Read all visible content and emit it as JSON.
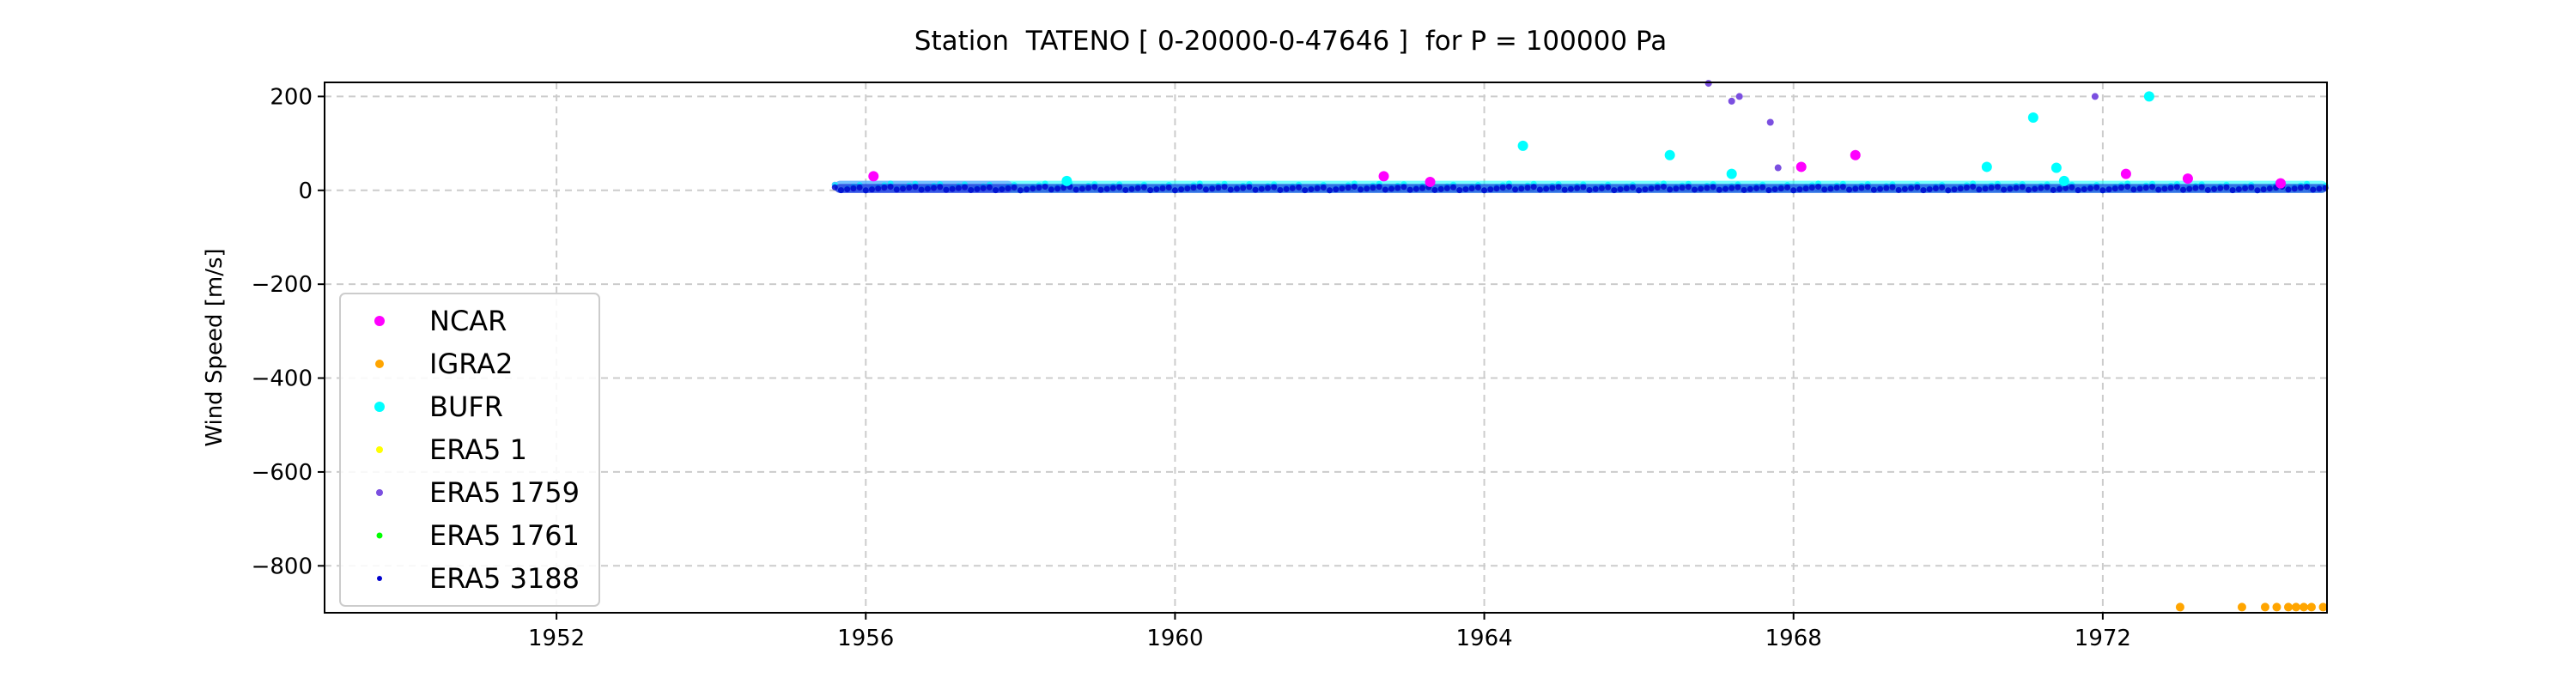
{
  "chart_data": {
    "type": "scatter",
    "title": "Station  TATENO [ 0-20000-0-47646 ]  for P = 100000 Pa",
    "xlabel": "",
    "ylabel": "Wind Speed [m/s]",
    "xlim": [
      1949.0,
      1974.9
    ],
    "ylim": [
      -900,
      230
    ],
    "xticks": [
      1952,
      1956,
      1960,
      1964,
      1968,
      1972
    ],
    "xtick_labels": [
      "1952",
      "1956",
      "1960",
      "1964",
      "1968",
      "1972"
    ],
    "yticks": [
      200,
      0,
      -200,
      -400,
      -600,
      -800
    ],
    "ytick_labels": [
      "200",
      "0",
      "−200",
      "−400",
      "−600",
      "−800"
    ],
    "grid": true,
    "legend_position": "lower-left",
    "series": [
      {
        "name": "NCAR",
        "color": "#ff00ff",
        "dense_band": {
          "x_start": 1955.6,
          "x_end": 1957.9,
          "y_min": 0,
          "y_max": 15
        },
        "points": [
          {
            "x": 1956.1,
            "y": 30
          },
          {
            "x": 1962.7,
            "y": 30
          },
          {
            "x": 1963.3,
            "y": 18
          },
          {
            "x": 1968.1,
            "y": 50
          },
          {
            "x": 1968.8,
            "y": 75
          },
          {
            "x": 1972.3,
            "y": 35
          },
          {
            "x": 1973.1,
            "y": 25
          },
          {
            "x": 1974.3,
            "y": 15
          }
        ]
      },
      {
        "name": "IGRA2",
        "color": "#ffa500",
        "points": [
          {
            "x": 1973.0,
            "y": -888
          },
          {
            "x": 1973.8,
            "y": -888
          },
          {
            "x": 1974.1,
            "y": -888
          },
          {
            "x": 1974.25,
            "y": -888
          },
          {
            "x": 1974.4,
            "y": -888
          },
          {
            "x": 1974.5,
            "y": -888
          },
          {
            "x": 1974.6,
            "y": -888
          },
          {
            "x": 1974.7,
            "y": -888
          },
          {
            "x": 1974.85,
            "y": -888
          }
        ]
      },
      {
        "name": "BUFR",
        "color": "#00ffff",
        "dense_band": {
          "x_start": 1955.6,
          "x_end": 1974.9,
          "y_min": 0,
          "y_max": 15
        },
        "points": [
          {
            "x": 1964.5,
            "y": 95
          },
          {
            "x": 1966.4,
            "y": 75
          },
          {
            "x": 1967.2,
            "y": 35
          },
          {
            "x": 1970.5,
            "y": 50
          },
          {
            "x": 1971.1,
            "y": 155
          },
          {
            "x": 1971.4,
            "y": 48
          },
          {
            "x": 1972.6,
            "y": 200
          },
          {
            "x": 1971.5,
            "y": 20
          },
          {
            "x": 1958.6,
            "y": 20
          }
        ]
      },
      {
        "name": "ERA5 1",
        "color": "#ffff00",
        "points": []
      },
      {
        "name": "ERA5 1759",
        "color": "#7b4fe0",
        "points": [
          {
            "x": 1966.9,
            "y": 228
          },
          {
            "x": 1967.2,
            "y": 190
          },
          {
            "x": 1967.3,
            "y": 200
          },
          {
            "x": 1967.7,
            "y": 145
          },
          {
            "x": 1967.8,
            "y": 48
          },
          {
            "x": 1971.9,
            "y": 200
          }
        ]
      },
      {
        "name": "ERA5 1761",
        "color": "#00ff00",
        "points": []
      },
      {
        "name": "ERA5 3188",
        "color": "#0000cd",
        "dense_band": {
          "x_start": 1955.6,
          "x_end": 1974.9,
          "y_min": 0,
          "y_max": 8
        },
        "points": []
      }
    ]
  }
}
